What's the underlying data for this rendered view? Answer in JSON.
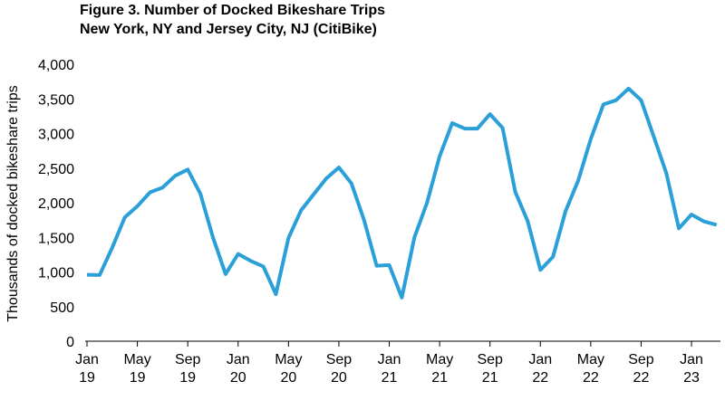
{
  "chart_data": {
    "type": "line",
    "title": "Figure 3. Number of Docked Bikeshare Trips",
    "subtitle": "New York, NY and Jersey City, NJ (CitiBike)",
    "y_label": "Thousands of docked bikeshare trips",
    "categories": [
      "Jan\n19",
      null,
      null,
      null,
      "May\n19",
      null,
      null,
      null,
      "Sep\n19",
      null,
      null,
      null,
      "Jan\n20",
      null,
      null,
      null,
      "May\n20",
      null,
      null,
      null,
      "Sep\n20",
      null,
      null,
      null,
      "Jan\n21",
      null,
      null,
      null,
      "May\n21",
      null,
      null,
      null,
      "Sep\n21",
      null,
      null,
      null,
      "Jan\n22",
      null,
      null,
      null,
      "May\n22",
      null,
      null,
      null,
      "Sep\n22",
      null,
      null,
      null,
      "Jan\n23",
      null,
      null
    ],
    "series": [
      {
        "name": "Docked bikeshare trips",
        "color": "#2a9fd8",
        "values": [
          960,
          955,
          1350,
          1790,
          1950,
          2150,
          2220,
          2390,
          2480,
          2130,
          1500,
          970,
          1260,
          1160,
          1080,
          680,
          1490,
          1890,
          2120,
          2350,
          2510,
          2280,
          1750,
          1090,
          1100,
          630,
          1500,
          2000,
          2670,
          3150,
          3070,
          3070,
          3280,
          3080,
          2160,
          1730,
          1030,
          1220,
          1880,
          2320,
          2920,
          3420,
          3480,
          3650,
          3480,
          2960,
          2430,
          1630,
          1830,
          1730,
          1680
        ]
      }
    ],
    "ylim": [
      0,
      4000
    ],
    "yticks": [
      0,
      500,
      {
        "value": 1000,
        "label": "1,000"
      },
      {
        "value": 1500,
        "label": "1,500"
      },
      {
        "value": 2000,
        "label": "2,000"
      },
      {
        "value": 2500,
        "label": "2,500"
      },
      {
        "value": 3000,
        "label": "3,000"
      },
      {
        "value": 3500,
        "label": "3,500"
      },
      {
        "value": 4000,
        "label": "4,000"
      }
    ],
    "grid": false
  }
}
